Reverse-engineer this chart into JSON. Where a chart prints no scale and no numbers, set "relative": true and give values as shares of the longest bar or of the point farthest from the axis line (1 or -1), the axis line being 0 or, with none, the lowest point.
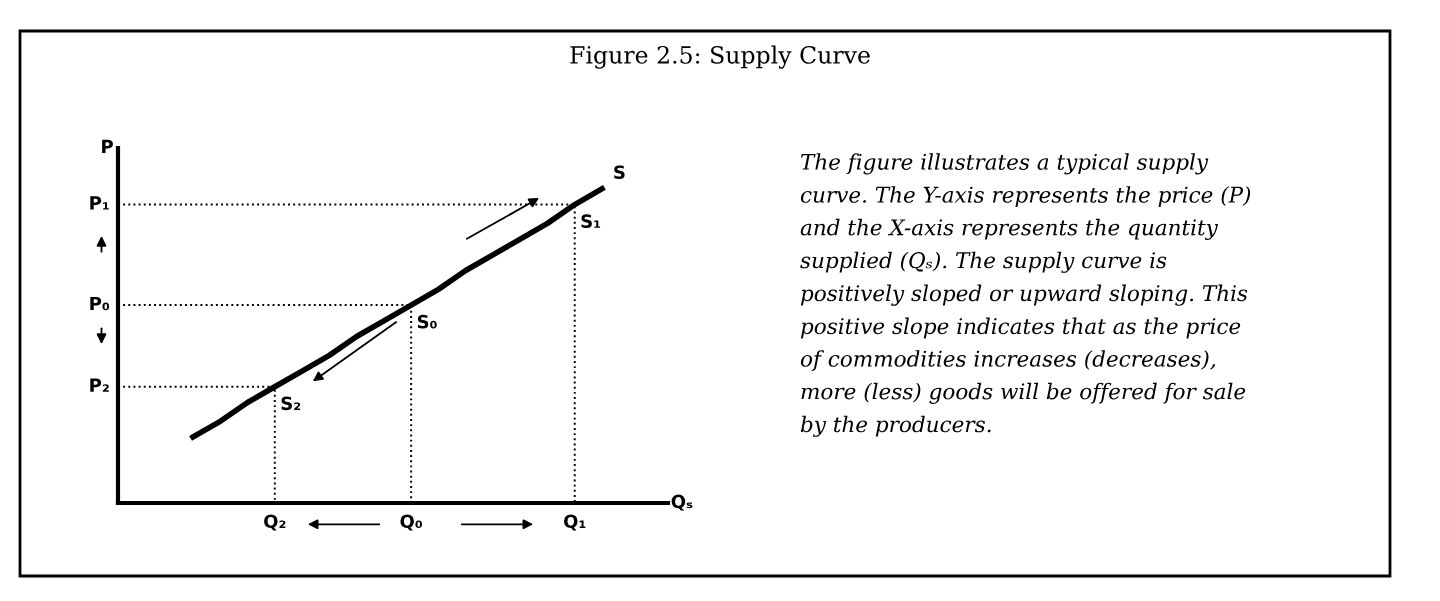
{
  "chart_data": {
    "type": "line",
    "title": "Figure 2.5: Supply Curve",
    "xlabel": "Qₛ",
    "ylabel": "P",
    "relative": true,
    "marker": "none",
    "categories": [
      null,
      null,
      null,
      "Q₂",
      null,
      null,
      null,
      null,
      "Q₀",
      null,
      null,
      null,
      null,
      null,
      "Q₁",
      null
    ],
    "series": [
      {
        "name": "S",
        "color": "#000000",
        "line_style": "solid",
        "values": [
          0.21,
          0.26,
          0.32,
          0.37,
          0.42,
          0.47,
          0.53,
          0.58,
          0.63,
          0.68,
          0.74,
          0.79,
          0.84,
          0.89,
          0.95,
          1.0
        ]
      }
    ],
    "annotations": [
      {
        "text": "S₁",
        "x": "Q₁",
        "y": 0.95
      },
      {
        "text": "S₀",
        "x": "Q₀",
        "y": 0.63
      },
      {
        "text": "S₂",
        "x": "Q₂",
        "y": 0.37
      },
      "P₁",
      "P₀",
      "P₂",
      "The figure illustrates a typical supply\ncurve. The Y-axis represents the price (P)\nand the X-axis represents the quantity\nsupplied (Qₛ). The supply curve is\npositively sloped or upward sloping. This\npositive slope indicates that as the price\nof commodities increases (decreases),\nmore (less) goods will be offered for sale\nby the producers."
    ]
  }
}
